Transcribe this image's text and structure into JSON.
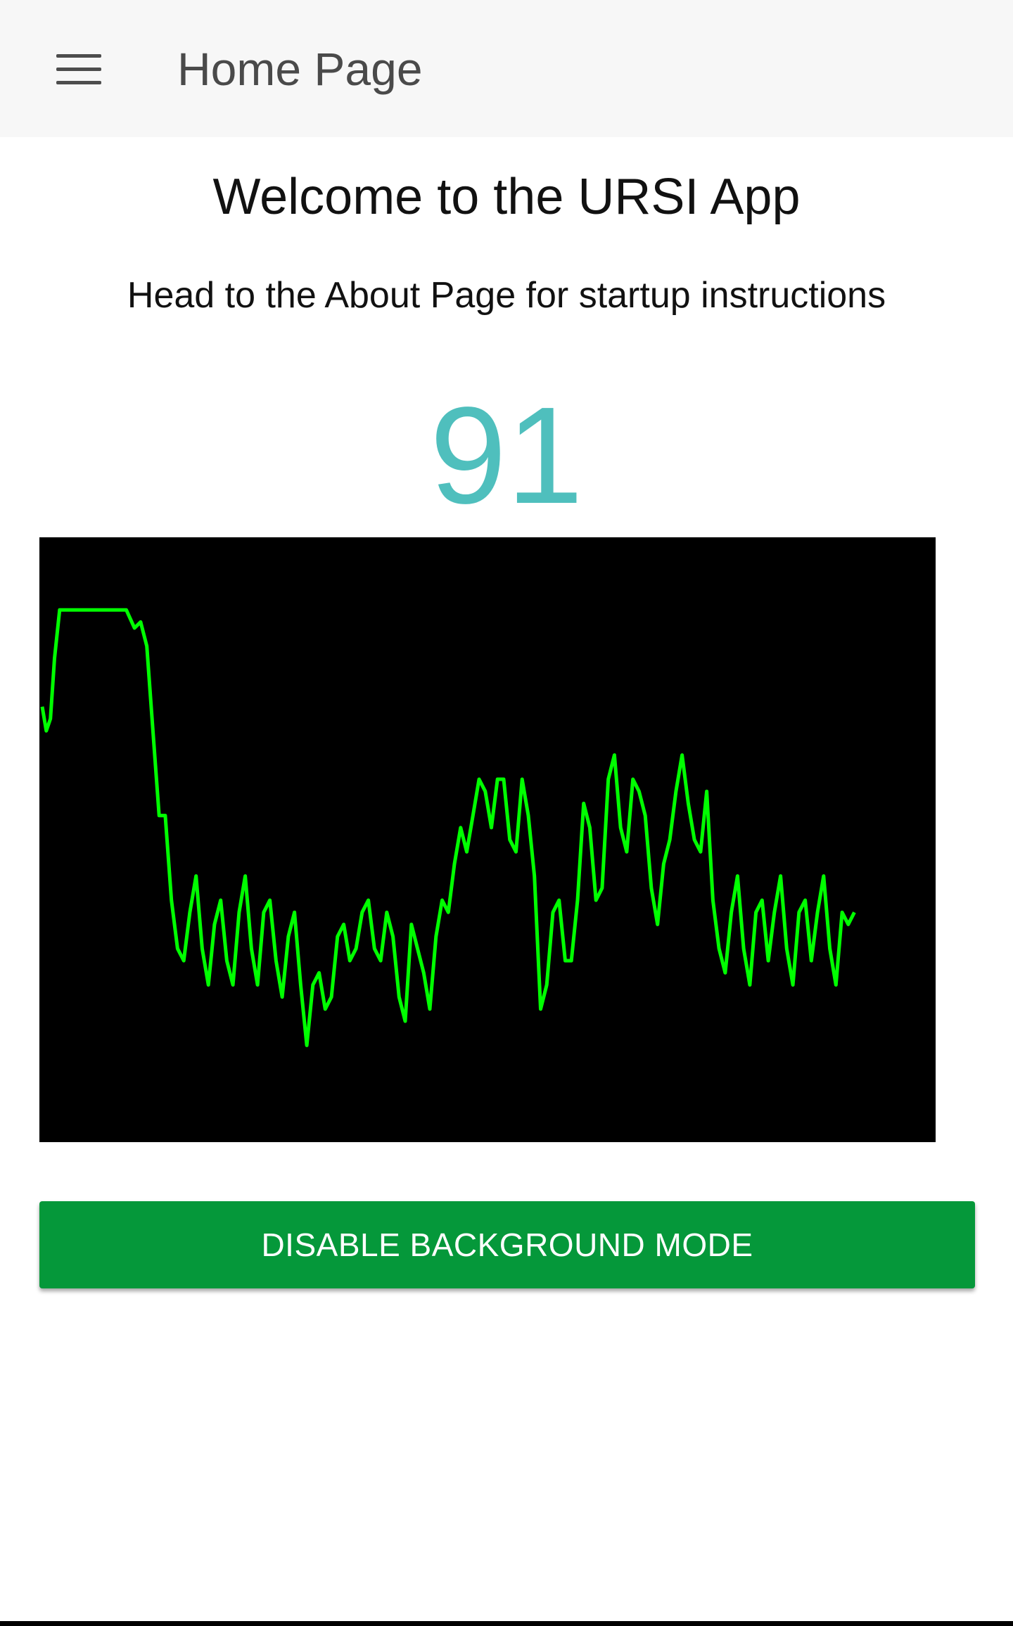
{
  "app_bar": {
    "title": "Home Page",
    "menu_icon": "hamburger-menu-icon"
  },
  "main": {
    "welcome": "Welcome to the URSI App",
    "instructions": "Head to the About Page for startup instructions",
    "bpm": "91",
    "bpm_color": "#4fbfbd",
    "waveform_color": "#00ff00",
    "waveform_background": "#000000",
    "button_label": "DISABLE BACKGROUND MODE",
    "button_color": "#05983a"
  },
  "chart_data": {
    "type": "line",
    "title": "",
    "xlabel": "",
    "ylabel": "",
    "grid": false,
    "legend": "none",
    "series": [
      {
        "x": [
          0,
          4,
          8,
          12,
          17,
          22,
          30,
          40,
          55,
          70,
          82,
          90,
          96,
          102,
          108,
          114,
          120,
          126,
          132,
          138,
          144,
          150,
          156,
          162,
          168,
          174,
          180,
          186,
          192,
          198,
          204,
          210,
          216,
          222,
          228,
          234,
          240,
          246,
          252,
          258,
          264,
          270,
          276,
          282,
          288,
          294,
          300,
          306,
          312,
          318,
          324,
          330,
          336,
          342,
          348,
          354,
          360,
          366,
          372,
          378,
          384,
          390,
          396,
          402,
          408,
          414,
          420,
          426,
          432,
          438,
          444,
          450,
          456,
          462,
          468,
          474,
          480,
          486,
          492,
          498,
          504,
          510,
          516,
          522,
          528,
          534,
          540,
          546,
          552,
          558,
          564,
          570,
          576,
          582,
          588,
          594,
          600,
          606,
          612,
          618,
          624,
          630,
          636,
          642,
          648,
          654,
          660,
          666,
          672,
          678,
          684,
          690,
          696,
          702,
          708,
          714,
          720,
          726,
          732,
          738,
          744,
          750,
          756,
          762,
          768,
          774,
          780,
          786,
          792
        ],
        "y": [
          72,
          68,
          70,
          80,
          88,
          88,
          88,
          88,
          88,
          88,
          88,
          85,
          86,
          82,
          68,
          54,
          54,
          40,
          32,
          30,
          38,
          44,
          32,
          26,
          36,
          40,
          30,
          26,
          38,
          44,
          32,
          26,
          38,
          40,
          30,
          24,
          34,
          38,
          26,
          16,
          26,
          28,
          22,
          24,
          34,
          36,
          30,
          32,
          38,
          40,
          32,
          30,
          38,
          34,
          24,
          20,
          36,
          32,
          28,
          22,
          34,
          40,
          38,
          46,
          52,
          48,
          54,
          60,
          58,
          52,
          60,
          60,
          50,
          48,
          60,
          54,
          44,
          22,
          26,
          38,
          40,
          30,
          30,
          40,
          56,
          52,
          40,
          42,
          60,
          64,
          52,
          48,
          60,
          58,
          54,
          42,
          36,
          46,
          50,
          58,
          64,
          56,
          50,
          48,
          58,
          40,
          32,
          28,
          38,
          44,
          32,
          26,
          38,
          40,
          30,
          38,
          44,
          32,
          26,
          38,
          40,
          30,
          38,
          44,
          32,
          26,
          38,
          36,
          38
        ]
      }
    ]
  }
}
